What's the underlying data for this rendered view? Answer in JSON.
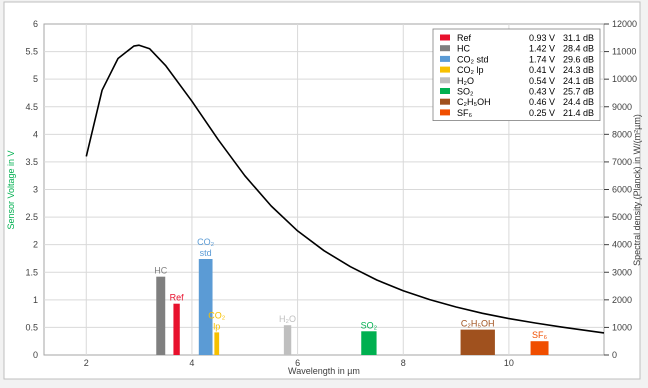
{
  "chart_data": {
    "type": "bar",
    "xlabel": "Wavelength in µm",
    "ylabel_left": "Sensor Voltage in V",
    "ylabel_right": "Spectral density (Planck) in W/(m²µm)",
    "xlim": [
      1.2,
      11.8
    ],
    "ylim_left": [
      0,
      6
    ],
    "ylim_right": [
      0,
      12000
    ],
    "x_ticks": [
      "2",
      "4",
      "6",
      "8",
      "10"
    ],
    "y_ticks_left": [
      "0",
      "0.5",
      "1",
      "1.5",
      "2",
      "2.5",
      "3",
      "3.5",
      "4",
      "4.5",
      "5",
      "5.5",
      "6"
    ],
    "y_ticks_right": [
      "0",
      "1000",
      "2000",
      "3000",
      "4000",
      "5000",
      "6000",
      "7000",
      "8000",
      "9000",
      "10000",
      "11000",
      "12000"
    ],
    "grid": true,
    "legend_position": "top-right",
    "bars": [
      {
        "id": "hc",
        "legend": "HC",
        "voltage": "1.42 V",
        "db": "28.4 dB",
        "x_center": 3.41,
        "width": 0.17,
        "value": 1.42,
        "color": "#7f7f7f",
        "label_lines": [
          "HC"
        ]
      },
      {
        "id": "ref",
        "legend": "Ref",
        "voltage": "0.93 V",
        "db": "31.1 dB",
        "x_center": 3.71,
        "width": 0.12,
        "value": 0.93,
        "color": "#e8112d",
        "label_lines": [
          "Ref"
        ]
      },
      {
        "id": "co2std",
        "legend": "CO₂ std",
        "voltage": "1.74 V",
        "db": "29.6 dB",
        "x_center": 4.26,
        "width": 0.26,
        "value": 1.74,
        "color": "#5b9bd5",
        "label_lines": [
          "CO₂",
          "std"
        ]
      },
      {
        "id": "co2lp",
        "legend": "CO₂ lp",
        "voltage": "0.41 V",
        "db": "24.3 dB",
        "x_center": 4.47,
        "width": 0.09,
        "value": 0.41,
        "color": "#f7c000",
        "label_lines": [
          "CO₂",
          "lp"
        ]
      },
      {
        "id": "h2o",
        "legend": "H₂O",
        "voltage": "0.54 V",
        "db": "24.1 dB",
        "x_center": 5.81,
        "width": 0.14,
        "value": 0.54,
        "color": "#bfbfbf",
        "label_lines": [
          "H₂O"
        ]
      },
      {
        "id": "so2",
        "legend": "SO₂",
        "voltage": "0.43 V",
        "db": "25.7 dB",
        "x_center": 7.35,
        "width": 0.29,
        "value": 0.43,
        "color": "#00b050",
        "label_lines": [
          "SO₂"
        ]
      },
      {
        "id": "c2h5oh",
        "legend": "C₂H₅OH",
        "voltage": "0.46 V",
        "db": "24.4 dB",
        "x_center": 9.41,
        "width": 0.65,
        "value": 0.46,
        "color": "#a0511e",
        "label_lines": [
          "C₂H₅OH"
        ]
      },
      {
        "id": "sf6",
        "legend": "SF₆",
        "voltage": "0.25 V",
        "db": "21.4 dB",
        "x_center": 10.58,
        "width": 0.34,
        "value": 0.25,
        "color": "#f04e00",
        "label_lines": [
          "SF₆"
        ]
      }
    ],
    "legend_order": [
      "ref",
      "hc",
      "co2std",
      "co2lp",
      "h2o",
      "so2",
      "c2h5oh",
      "sf6"
    ],
    "planck_curve": {
      "x": [
        2.0,
        2.3,
        2.6,
        2.9,
        3.0,
        3.2,
        3.5,
        4.0,
        4.5,
        5.0,
        5.5,
        6.0,
        6.5,
        7.0,
        7.5,
        8.0,
        8.5,
        9.0,
        9.5,
        10.0,
        10.5,
        11.0,
        11.8
      ],
      "y": [
        7200,
        9600,
        10750,
        11200,
        11230,
        11100,
        10500,
        9200,
        7800,
        6500,
        5400,
        4500,
        3780,
        3200,
        2720,
        2330,
        2010,
        1740,
        1510,
        1320,
        1160,
        1010,
        800
      ]
    }
  }
}
